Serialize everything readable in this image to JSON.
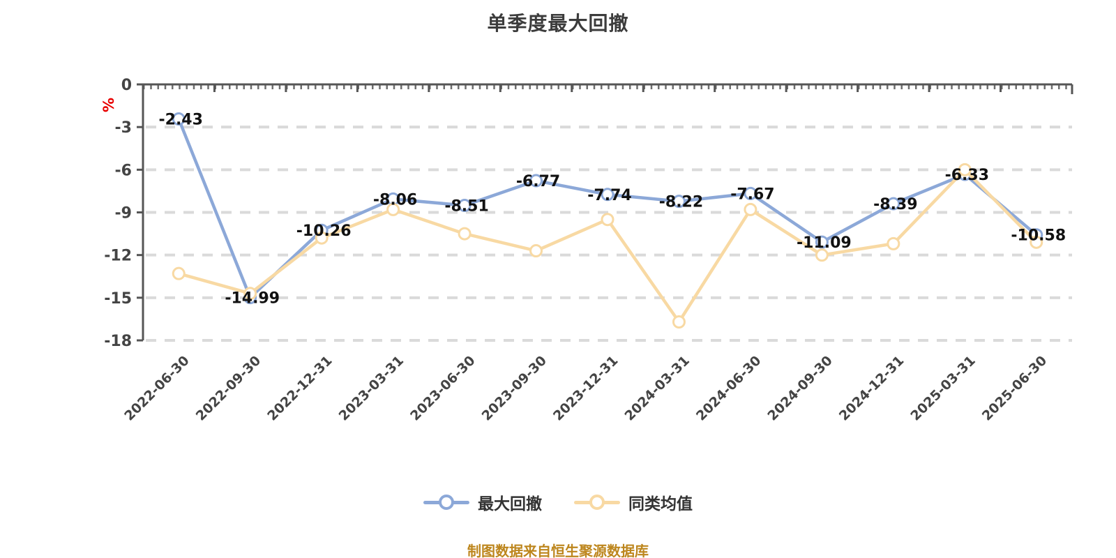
{
  "page": {
    "title": "单季度最大回撤",
    "source_note": "制图数据来自恒生聚源数据库"
  },
  "chart_data": {
    "type": "line",
    "title": "单季度最大回撤",
    "xlabel": "",
    "ylabel": "%",
    "ylabel_color": "#e80000",
    "ylim": [
      -18,
      0
    ],
    "y_ticks": [
      0,
      -3,
      -6,
      -9,
      -12,
      -15,
      -18
    ],
    "grid": "horizontal-dashed",
    "legend_position": "bottom",
    "categories": [
      "2022-06-30",
      "2022-09-30",
      "2022-12-31",
      "2023-03-31",
      "2023-06-30",
      "2023-09-30",
      "2023-12-31",
      "2024-03-31",
      "2024-06-30",
      "2024-09-30",
      "2024-12-31",
      "2025-03-31",
      "2025-06-30"
    ],
    "series": [
      {
        "name": "最大回撤",
        "color": "#8ca8d8",
        "marker": "circle-white-fill",
        "show_labels": true,
        "values": [
          -2.43,
          -14.99,
          -10.26,
          -8.06,
          -8.51,
          -6.77,
          -7.74,
          -8.22,
          -7.67,
          -11.09,
          -8.39,
          -6.33,
          -10.58
        ]
      },
      {
        "name": "同类均值",
        "color": "#f8d9a3",
        "marker": "circle-white-fill",
        "show_labels": false,
        "values": [
          -13.3,
          -14.7,
          -10.8,
          -8.8,
          -10.5,
          -11.7,
          -9.5,
          -16.7,
          -8.8,
          -12.0,
          -11.2,
          -6.0,
          -11.1
        ]
      }
    ],
    "colors": {
      "axis": "#555555",
      "tick_text": "#444444",
      "grid": "#dadada",
      "data_label": "#111111",
      "title_text": "#3c3c3c",
      "source_note_text": "#bd861d"
    }
  }
}
